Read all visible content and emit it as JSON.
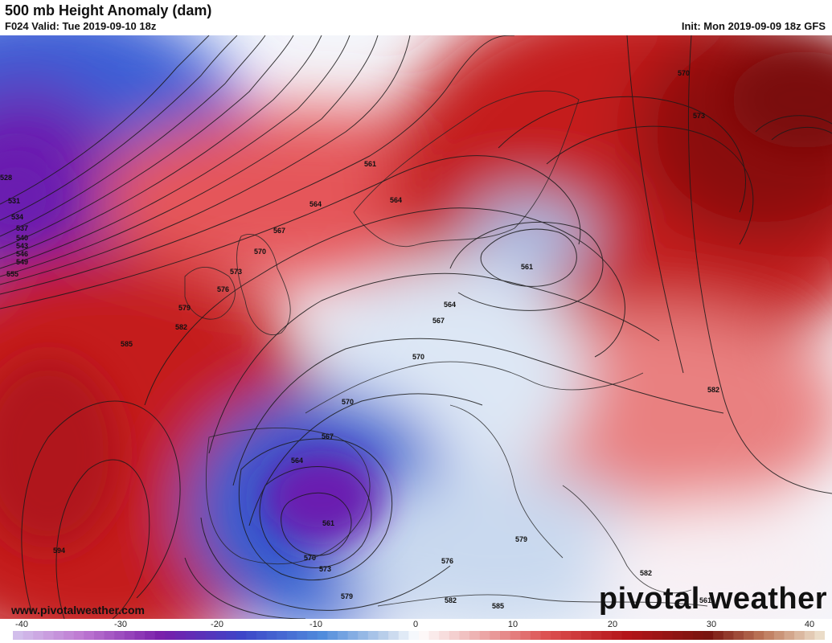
{
  "header": {
    "title": "500 mb Height Anomaly (dam)",
    "valid": "F024 Valid: Tue 2019-09-10 18z",
    "init": "Init: Mon 2019-09-09 18z GFS"
  },
  "footer": {
    "url": "www.pivotalweather.com",
    "brand": "pivotal weather"
  },
  "colorbar": {
    "ticks": [
      "-40",
      "-30",
      "-20",
      "-10",
      "0",
      "10",
      "20",
      "30",
      "40"
    ]
  },
  "contour_labels": [
    {
      "text": "528"
    },
    {
      "text": "531"
    },
    {
      "text": "534"
    },
    {
      "text": "537"
    },
    {
      "text": "540"
    },
    {
      "text": "543"
    },
    {
      "text": "546"
    },
    {
      "text": "549"
    },
    {
      "text": "555"
    },
    {
      "text": "561"
    },
    {
      "text": "564"
    },
    {
      "text": "564"
    },
    {
      "text": "567"
    },
    {
      "text": "570"
    },
    {
      "text": "573"
    },
    {
      "text": "576"
    },
    {
      "text": "579"
    },
    {
      "text": "582"
    },
    {
      "text": "585"
    },
    {
      "text": "594"
    },
    {
      "text": "561"
    },
    {
      "text": "564"
    },
    {
      "text": "567"
    },
    {
      "text": "570"
    },
    {
      "text": "570"
    },
    {
      "text": "567"
    },
    {
      "text": "564"
    },
    {
      "text": "561"
    },
    {
      "text": "570"
    },
    {
      "text": "573"
    },
    {
      "text": "579"
    },
    {
      "text": "576"
    },
    {
      "text": "582"
    },
    {
      "text": "585"
    },
    {
      "text": "579"
    },
    {
      "text": "582"
    },
    {
      "text": "582"
    },
    {
      "text": "570"
    },
    {
      "text": "573"
    },
    {
      "text": "561"
    }
  ],
  "colors": {
    "deep_negative": "#6a1fb0",
    "negative": "#2f5fd0",
    "light_negative": "#c9d9ef",
    "neutral": "#ffffff",
    "light_positive": "#f3c2c2",
    "positive": "#d9242a",
    "deep_positive": "#8a1010"
  }
}
